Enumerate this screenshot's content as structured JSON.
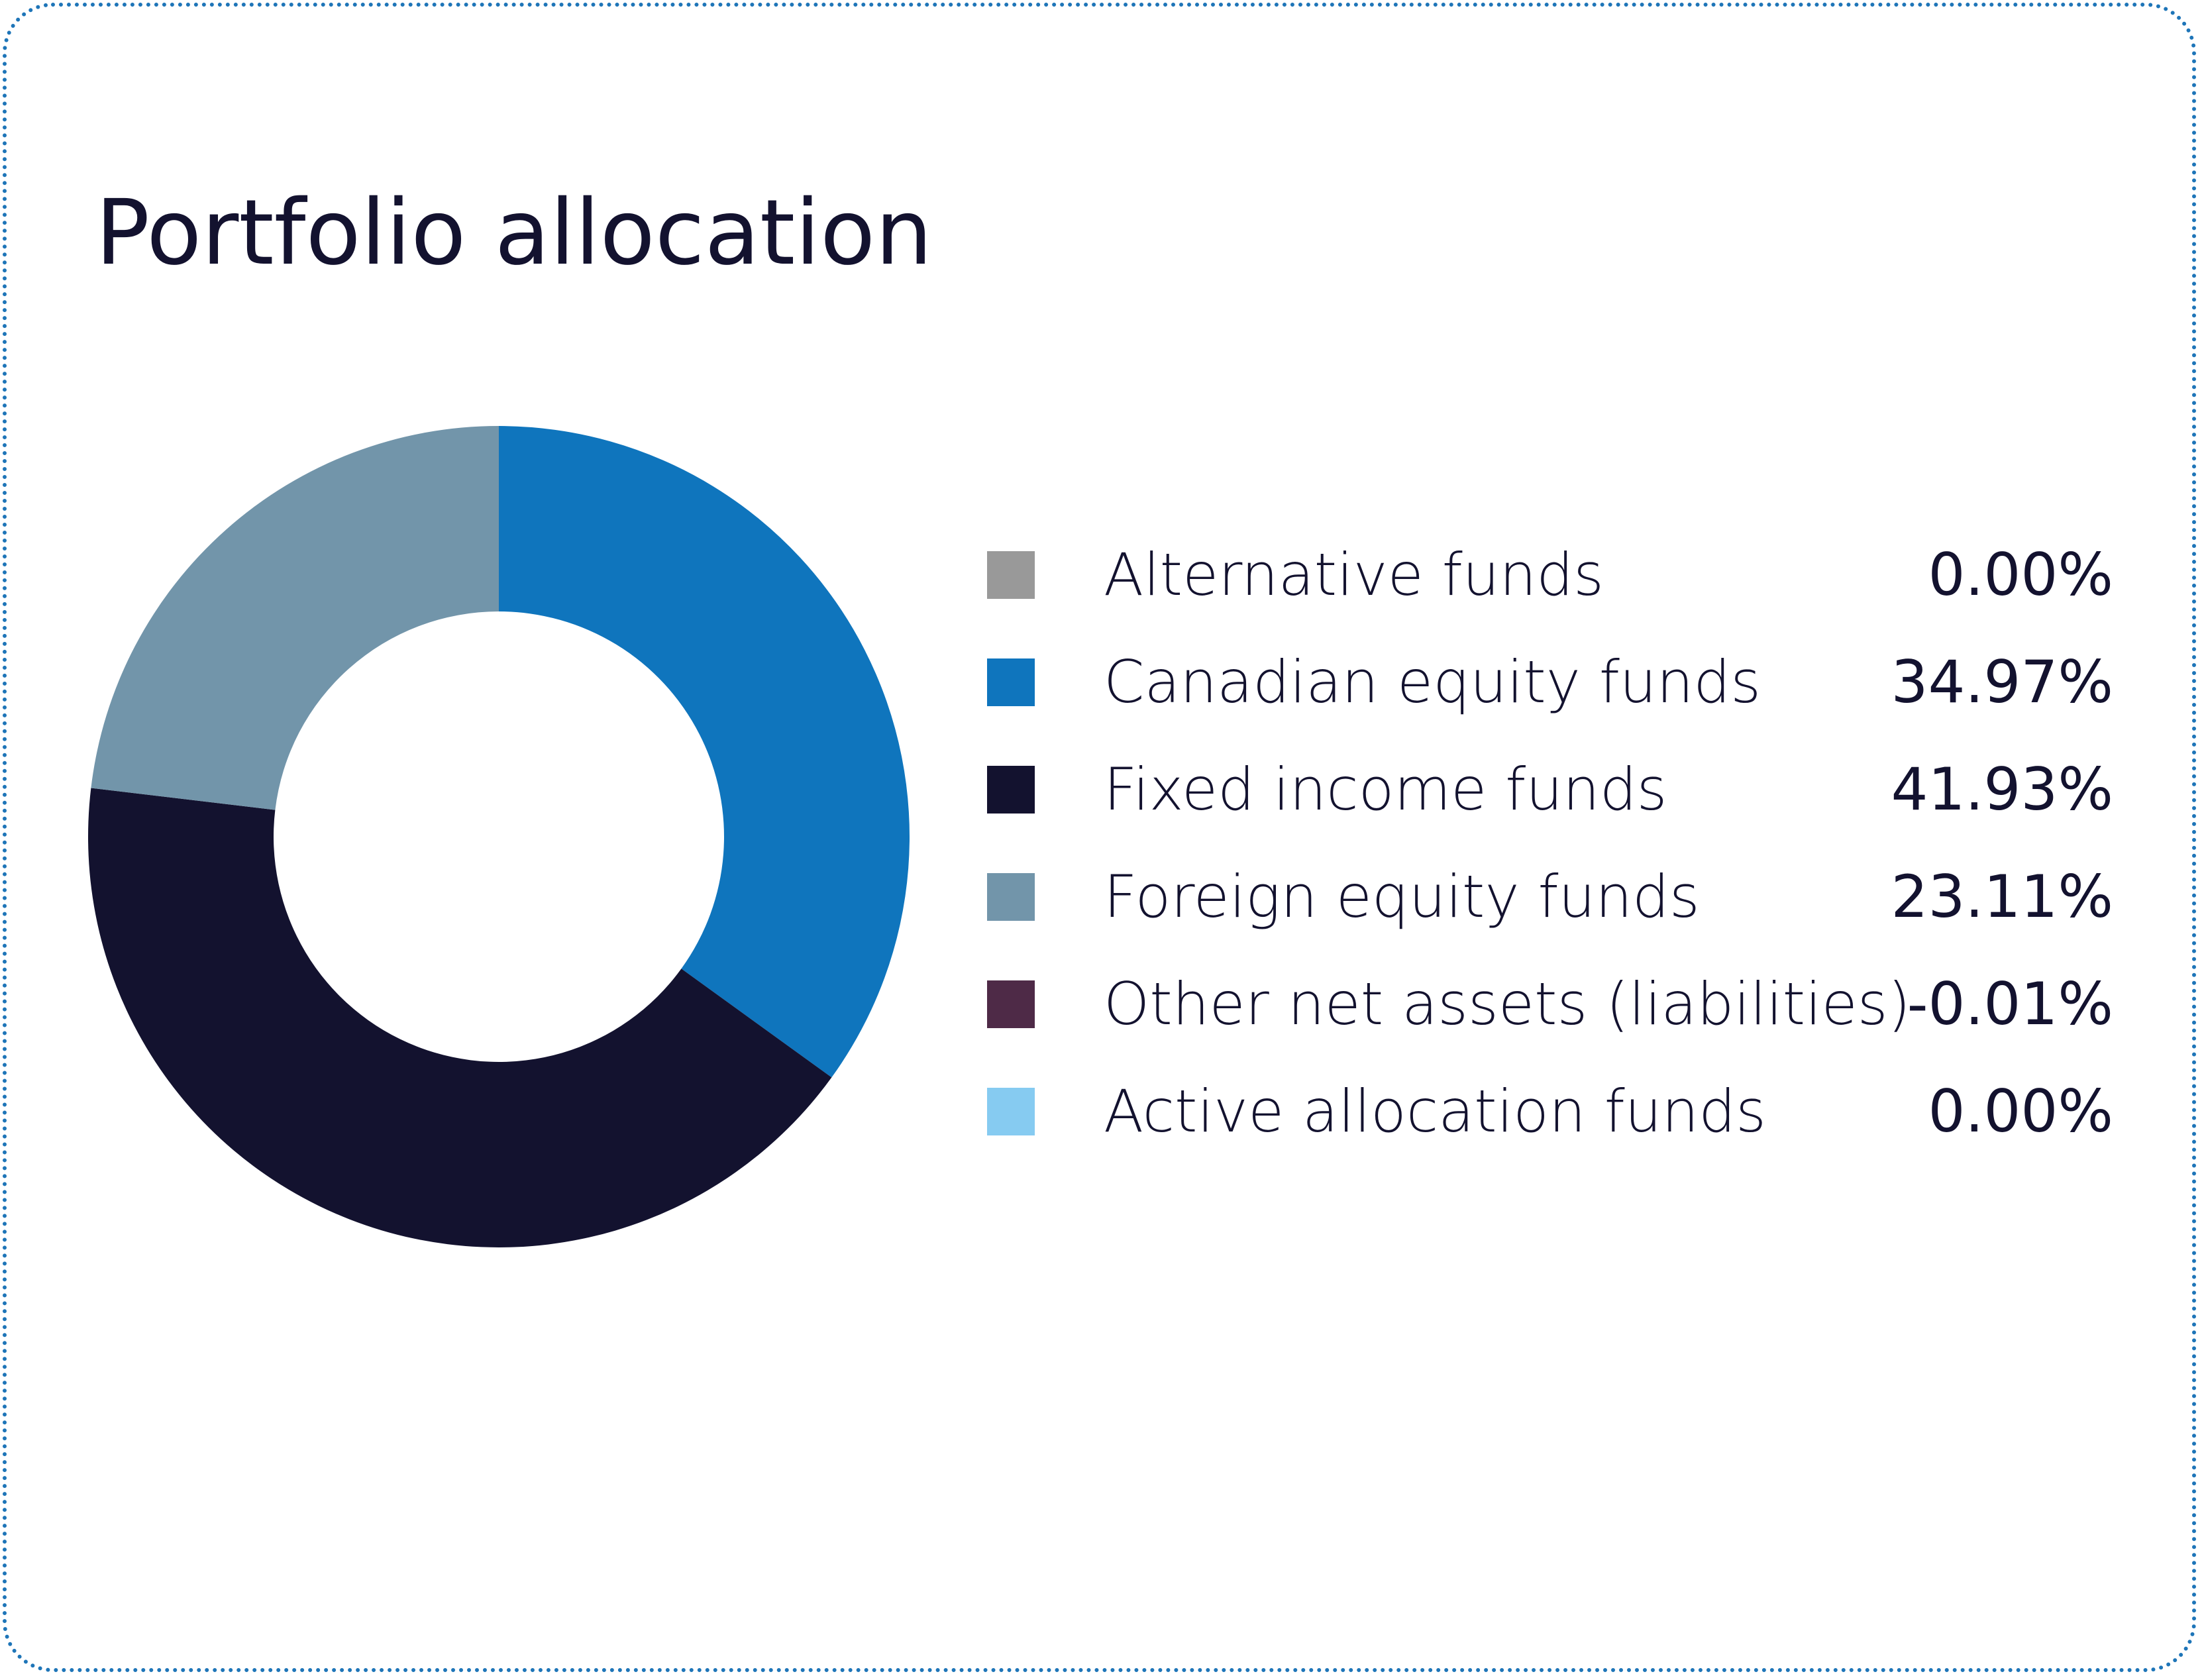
{
  "title": "Portfolio allocation",
  "chart_data": {
    "type": "pie",
    "title": "Portfolio allocation",
    "donut": true,
    "categories": [
      "Alternative funds",
      "Canadian equity funds",
      "Fixed income funds",
      "Foreign equity funds",
      "Other net assets (liabilities)",
      "Active allocation funds"
    ],
    "values": [
      0.0,
      34.97,
      41.93,
      23.11,
      -0.01,
      0.0
    ],
    "value_labels": [
      "0.00%",
      "34.97%",
      "41.93%",
      "23.11%",
      "-0.01%",
      "0.00%"
    ],
    "colors": [
      "#999999",
      "#0f75bd",
      "#13122f",
      "#7295aa",
      "#4e2a47",
      "#86cbf1"
    ],
    "legend_placement": "right"
  },
  "colors": {
    "border": "#1e75b8",
    "text": "#13122f",
    "background": "#ffffff"
  }
}
